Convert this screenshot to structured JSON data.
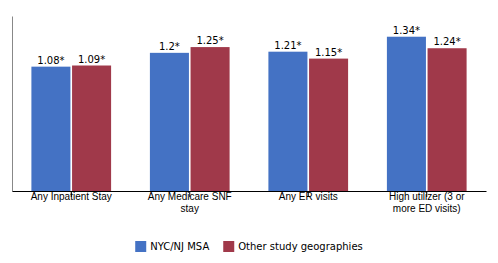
{
  "chart_data": {
    "type": "bar",
    "categories": [
      "Any Inpatient Stay",
      "Any Medicare SNF\nstay",
      "Any ER visits",
      "High utilizer (3 or\nmore ED visits)"
    ],
    "series": [
      {
        "name": "NYC/NJ MSA",
        "color": "#4472C4",
        "values": [
          1.08,
          1.2,
          1.21,
          1.34
        ],
        "value_labels": [
          "1.08*",
          "1.2*",
          "1.21*",
          "1.34*"
        ]
      },
      {
        "name": "Other study geographies",
        "color": "#A0394A",
        "values": [
          1.09,
          1.25,
          1.15,
          1.24
        ],
        "value_labels": [
          "1.09*",
          "1.25*",
          "1.15*",
          "1.24*"
        ]
      }
    ],
    "ylim": [
      0,
      1.52
    ],
    "data_labels": true,
    "tick_labels": "x",
    "grid": false,
    "legend": "bottom"
  }
}
